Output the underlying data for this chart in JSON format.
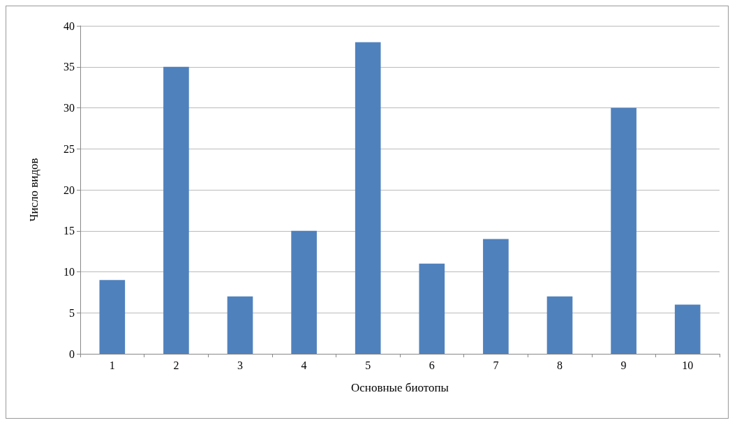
{
  "chart_data": {
    "type": "bar",
    "xlabel": "Основные биотопы",
    "ylabel": "Число видов",
    "categories": [
      "1",
      "2",
      "3",
      "4",
      "5",
      "6",
      "7",
      "8",
      "9",
      "10"
    ],
    "values": [
      9,
      35,
      7,
      15,
      38,
      11,
      14,
      7,
      30,
      6
    ],
    "color": "#4f81bd",
    "ylim": [
      0,
      40
    ],
    "yticks": [
      0,
      5,
      10,
      15,
      20,
      25,
      30,
      35,
      40
    ],
    "grid": "y"
  }
}
